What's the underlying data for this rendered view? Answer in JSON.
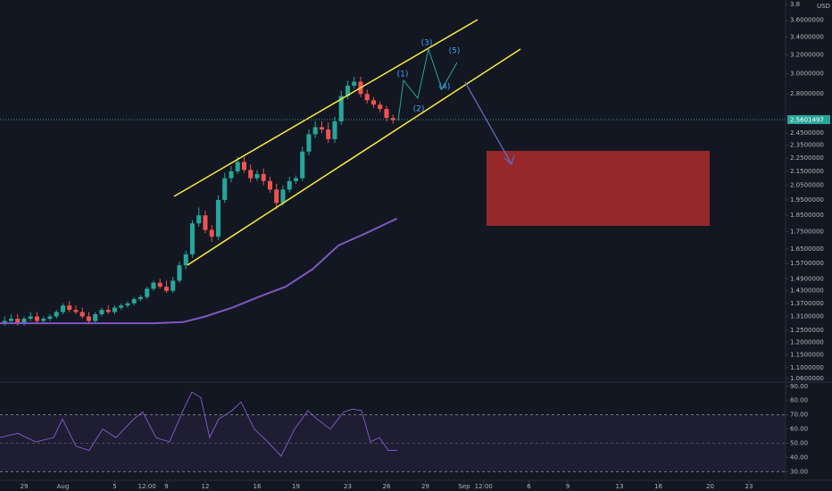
{
  "chart_data": {
    "type": "candlestick",
    "log_scale": true,
    "currency": "USD",
    "price_label": "2.5601497",
    "annotations": [
      "(1)",
      "(2)",
      "(3)",
      "(4)",
      "(5)"
    ],
    "xlim": [
      -1.86,
      58.83
    ],
    "ylim": [
      1.06,
      3.8
    ],
    "xticks": [
      {
        "value": 0,
        "label": "29"
      },
      {
        "value": 3,
        "label": "Aug"
      },
      {
        "value": 7,
        "label": "5"
      },
      {
        "value": 9.5,
        "label": "12:00"
      },
      {
        "value": 11,
        "label": "9"
      },
      {
        "value": 14,
        "label": "12"
      },
      {
        "value": 18,
        "label": "16"
      },
      {
        "value": 21,
        "label": "19"
      },
      {
        "value": 25,
        "label": "23"
      },
      {
        "value": 28,
        "label": "26"
      },
      {
        "value": 31,
        "label": "29"
      },
      {
        "value": 34,
        "label": "Sep"
      },
      {
        "value": 35.5,
        "label": "12:00"
      },
      {
        "value": 39,
        "label": "6"
      },
      {
        "value": 42,
        "label": "9"
      },
      {
        "value": 46,
        "label": "13"
      },
      {
        "value": 49,
        "label": "16"
      },
      {
        "value": 53,
        "label": "20"
      },
      {
        "value": 56,
        "label": "23"
      }
    ],
    "yticks": [
      3.8,
      {
        "value": 3.6,
        "label": "3.6000000"
      },
      {
        "value": 3.4,
        "label": "3.4000000"
      },
      {
        "value": 3.2,
        "label": "3.2000000"
      },
      {
        "value": 3.0,
        "label": "3.0000000"
      },
      {
        "value": 2.8,
        "label": "2.8000000"
      },
      {
        "value": 2.45,
        "label": "2.4500000"
      },
      {
        "value": 2.35,
        "label": "2.3500000"
      },
      {
        "value": 2.25,
        "label": "2.2500000"
      },
      {
        "value": 2.15,
        "label": "2.1500000"
      },
      {
        "value": 2.05,
        "label": "2.0500000"
      },
      {
        "value": 1.95,
        "label": "1.9500000"
      },
      {
        "value": 1.85,
        "label": "1.8500000"
      },
      {
        "value": 1.75,
        "label": "1.7500000"
      },
      {
        "value": 1.65,
        "label": "1.6500000"
      },
      {
        "value": 1.57,
        "label": "1.5700000"
      },
      {
        "value": 1.49,
        "label": "1.4900000"
      },
      {
        "value": 1.43,
        "label": "1.4300000"
      },
      {
        "value": 1.37,
        "label": "1.3700000"
      },
      {
        "value": 1.31,
        "label": "1.3100000"
      },
      {
        "value": 1.25,
        "label": "1.2500000"
      },
      {
        "value": 1.2,
        "label": "1.2000000"
      },
      {
        "value": 1.15,
        "label": "1.1500000"
      },
      {
        "value": 1.1,
        "label": "1.1000000"
      },
      {
        "value": 1.06,
        "label": "1.0600000"
      }
    ],
    "up_color": "#26a69a",
    "down_color": "#ef5350",
    "candles": {
      "x": [
        -1.5,
        -1,
        -0.5,
        0,
        0.5,
        1,
        1.5,
        2,
        2.5,
        3,
        3.5,
        4,
        4.5,
        5,
        5.5,
        6,
        6.5,
        7,
        7.5,
        8,
        8.5,
        9,
        9.5,
        10,
        10.5,
        11,
        11.5,
        12,
        12.5,
        13,
        13.5,
        14,
        14.5,
        15,
        15.5,
        16,
        16.5,
        17,
        17.5,
        18,
        18.5,
        19,
        19.5,
        20,
        20.5,
        21,
        21.5,
        22,
        22.5,
        23,
        23.5,
        24,
        24.5,
        25,
        25.5,
        26,
        26.5,
        27,
        27.5,
        28,
        28.5
      ],
      "open": [
        1.28,
        1.29,
        1.3,
        1.28,
        1.3,
        1.31,
        1.29,
        1.3,
        1.31,
        1.33,
        1.36,
        1.34,
        1.33,
        1.31,
        1.29,
        1.32,
        1.34,
        1.33,
        1.35,
        1.36,
        1.37,
        1.39,
        1.4,
        1.44,
        1.47,
        1.45,
        1.43,
        1.48,
        1.56,
        1.62,
        1.8,
        1.85,
        1.76,
        1.72,
        1.95,
        2.1,
        2.15,
        2.22,
        2.16,
        2.1,
        2.13,
        2.08,
        2.02,
        1.93,
        2.02,
        2.08,
        2.1,
        2.3,
        2.44,
        2.5,
        2.48,
        2.4,
        2.55,
        2.78,
        2.88,
        2.92,
        2.8,
        2.74,
        2.7,
        2.66,
        2.58
      ],
      "high": [
        1.31,
        1.32,
        1.32,
        1.31,
        1.33,
        1.33,
        1.31,
        1.32,
        1.34,
        1.37,
        1.38,
        1.36,
        1.35,
        1.33,
        1.33,
        1.35,
        1.36,
        1.36,
        1.37,
        1.38,
        1.4,
        1.41,
        1.45,
        1.48,
        1.49,
        1.48,
        1.5,
        1.58,
        1.64,
        1.82,
        1.9,
        1.88,
        1.79,
        1.98,
        2.14,
        2.19,
        2.26,
        2.26,
        2.2,
        2.16,
        2.17,
        2.11,
        2.06,
        2.05,
        2.11,
        2.12,
        2.34,
        2.48,
        2.55,
        2.55,
        2.54,
        2.59,
        2.83,
        2.93,
        2.97,
        2.97,
        2.84,
        2.77,
        2.73,
        2.69,
        2.61
      ],
      "low": [
        1.27,
        1.28,
        1.27,
        1.27,
        1.29,
        1.28,
        1.28,
        1.29,
        1.3,
        1.32,
        1.33,
        1.32,
        1.3,
        1.28,
        1.28,
        1.31,
        1.32,
        1.32,
        1.34,
        1.35,
        1.36,
        1.38,
        1.39,
        1.43,
        1.44,
        1.42,
        1.42,
        1.47,
        1.54,
        1.6,
        1.78,
        1.74,
        1.69,
        1.7,
        1.93,
        2.07,
        2.13,
        2.14,
        2.07,
        2.08,
        2.05,
        2.0,
        1.89,
        1.91,
        2.0,
        2.06,
        2.08,
        2.27,
        2.41,
        2.45,
        2.37,
        2.37,
        2.52,
        2.75,
        2.85,
        2.77,
        2.71,
        2.67,
        2.63,
        2.55,
        2.53
      ],
      "close": [
        1.29,
        1.3,
        1.28,
        1.3,
        1.31,
        1.29,
        1.3,
        1.31,
        1.33,
        1.36,
        1.34,
        1.33,
        1.31,
        1.29,
        1.32,
        1.34,
        1.33,
        1.35,
        1.36,
        1.37,
        1.39,
        1.4,
        1.44,
        1.47,
        1.45,
        1.43,
        1.48,
        1.56,
        1.62,
        1.8,
        1.85,
        1.76,
        1.72,
        1.95,
        2.1,
        2.15,
        2.22,
        2.16,
        2.1,
        2.13,
        2.08,
        2.02,
        1.93,
        2.02,
        2.08,
        2.1,
        2.3,
        2.44,
        2.5,
        2.48,
        2.4,
        2.55,
        2.78,
        2.88,
        2.92,
        2.8,
        2.74,
        2.7,
        2.66,
        2.58,
        2.56
      ]
    },
    "moving_average": {
      "color": "#7e57c2",
      "x": [
        -1.86,
        5,
        10,
        12.3,
        14,
        16.1,
        18.1,
        20.2,
        22.3,
        24.3,
        26.4,
        28.8
      ],
      "values": [
        1.28,
        1.28,
        1.28,
        1.285,
        1.31,
        1.35,
        1.4,
        1.45,
        1.54,
        1.67,
        1.74,
        1.83
      ]
    },
    "rsi": {
      "color": "#7e57c2",
      "ylim": [
        24,
        93
      ],
      "yticks": [
        {
          "value": 90,
          "label": "90.00"
        },
        {
          "value": 80,
          "label": "80.00"
        },
        {
          "value": 70,
          "label": "70.00"
        },
        {
          "value": 60,
          "label": "60.00"
        },
        {
          "value": 50,
          "label": "50.00"
        },
        {
          "value": 40,
          "label": "40.00"
        },
        {
          "value": 30,
          "label": "30.00"
        }
      ],
      "band": [
        30,
        70
      ],
      "midline": 50,
      "x": [
        -1.86,
        -0.48,
        0.9,
        2.28,
        2.97,
        4.0,
        5.03,
        6.07,
        7.1,
        8.48,
        9.17,
        10.2,
        11.24,
        12.28,
        12.97,
        13.66,
        14.34,
        15.03,
        16.07,
        16.76,
        17.79,
        18.83,
        19.86,
        20.9,
        21.93,
        22.62,
        23.66,
        24.69,
        25.38,
        26.07,
        26.76,
        27.45,
        28.14,
        28.83
      ],
      "values": [
        54,
        57,
        51,
        54,
        67,
        48,
        45,
        60,
        54,
        67,
        72,
        54,
        51,
        73,
        86,
        82,
        54,
        67,
        73,
        79,
        60,
        51,
        41,
        60,
        73,
        67,
        60,
        72,
        74,
        73,
        51,
        54,
        45,
        45
      ]
    }
  }
}
